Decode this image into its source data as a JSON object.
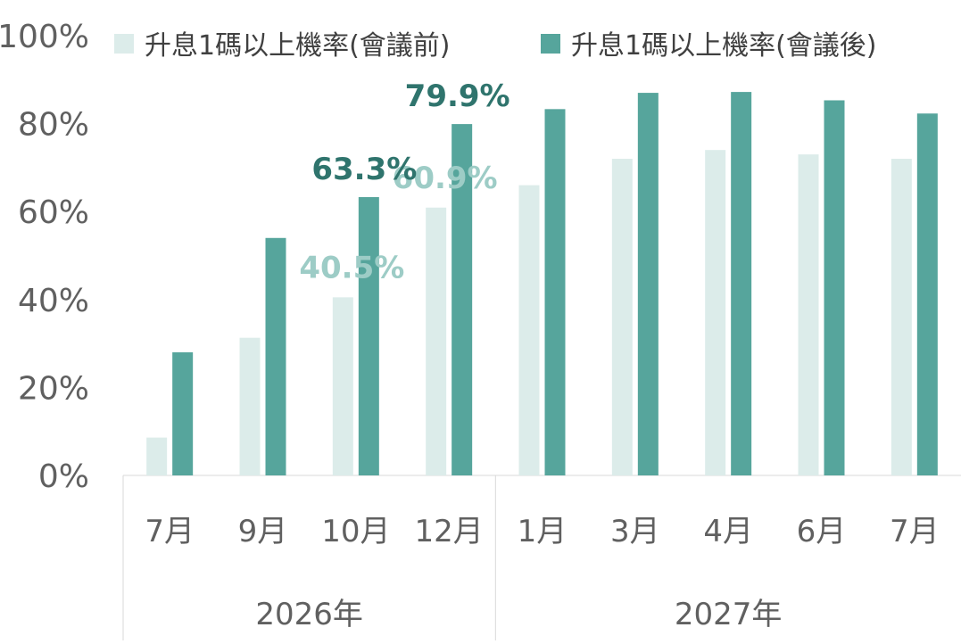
{
  "chart_data": {
    "type": "bar",
    "categories": [
      "7月",
      "9月",
      "10月",
      "12月",
      "1月",
      "3月",
      "4月",
      "6月",
      "7月"
    ],
    "groups": [
      {
        "label": "2026年",
        "span": [
          0,
          3
        ]
      },
      {
        "label": "2027年",
        "span": [
          4,
          8
        ]
      }
    ],
    "series": [
      {
        "name": "升息1碼以上機率(會議前)",
        "color": "#dcecea",
        "values": [
          8.6,
          31.3,
          40.5,
          60.9,
          66.0,
          72.0,
          74.0,
          73.0,
          72.0
        ]
      },
      {
        "name": "升息1碼以上機率(會議後)",
        "color": "#56a59c",
        "values": [
          28.0,
          54.0,
          63.3,
          79.9,
          83.3,
          87.0,
          87.2,
          85.3,
          82.3
        ]
      }
    ],
    "data_labels": [
      {
        "series": 0,
        "index": 2,
        "text": "40.5%",
        "color": "#9dccc6"
      },
      {
        "series": 0,
        "index": 3,
        "text": "60.9%",
        "color": "#9dccc6"
      },
      {
        "series": 1,
        "index": 2,
        "text": "63.3%",
        "color": "#2f746d"
      },
      {
        "series": 1,
        "index": 3,
        "text": "79.9%",
        "color": "#2f746d"
      }
    ],
    "y_ticks": [
      "0%",
      "20%",
      "40%",
      "60%",
      "80%",
      "100%"
    ],
    "y_tick_values": [
      0,
      20,
      40,
      60,
      80,
      100
    ],
    "ylim": [
      0,
      100
    ],
    "legend_position": "top",
    "grid": false,
    "title": "",
    "xlabel": "",
    "ylabel": ""
  }
}
